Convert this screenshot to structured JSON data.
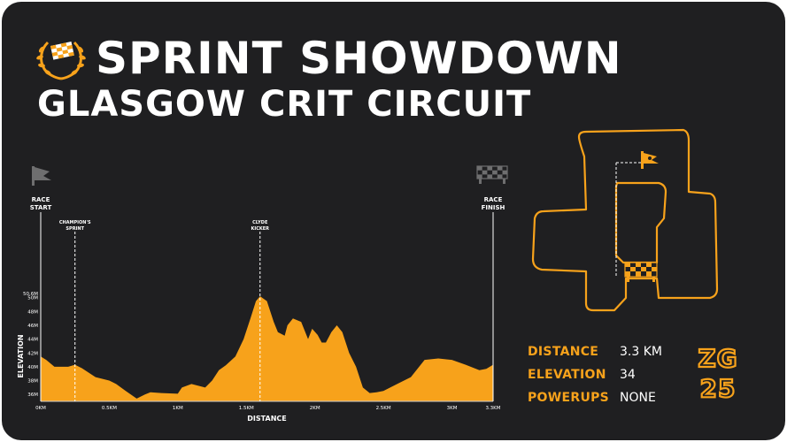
{
  "header": {
    "title": "SPRINT SHOWDOWN",
    "subtitle": "GLASGOW CRIT CIRCUIT",
    "logo_icon": "laurel-checkered-flag-icon"
  },
  "colors": {
    "background": "#1f1f21",
    "accent": "#f7a21b",
    "text": "#ffffff"
  },
  "chart_data": {
    "type": "area",
    "xlabel": "DISTANCE",
    "ylabel": "ELEVATION",
    "xlim": [
      0,
      3.3
    ],
    "ylim": [
      35,
      50.6
    ],
    "x_ticks": [
      {
        "value": 0,
        "label": "0KM"
      },
      {
        "value": 0.5,
        "label": "0.5KM"
      },
      {
        "value": 1,
        "label": "1KM"
      },
      {
        "value": 1.5,
        "label": "1.5KM"
      },
      {
        "value": 2,
        "label": "2KM"
      },
      {
        "value": 2.5,
        "label": "2.5KM"
      },
      {
        "value": 3,
        "label": "3KM"
      },
      {
        "value": 3.3,
        "label": "3.3KM"
      }
    ],
    "y_ticks": [
      {
        "value": 36,
        "label": "36M"
      },
      {
        "value": 38,
        "label": "38M"
      },
      {
        "value": 40,
        "label": "40M"
      },
      {
        "value": 42,
        "label": "42M"
      },
      {
        "value": 44,
        "label": "44M"
      },
      {
        "value": 46,
        "label": "46M"
      },
      {
        "value": 48,
        "label": "48M"
      },
      {
        "value": 50,
        "label": "50M"
      },
      {
        "value": 50.6,
        "label": "50.6M"
      }
    ],
    "x": [
      0,
      0.04,
      0.1,
      0.2,
      0.25,
      0.3,
      0.4,
      0.5,
      0.55,
      0.62,
      0.7,
      0.76,
      0.8,
      0.88,
      1.0,
      1.03,
      1.1,
      1.2,
      1.25,
      1.3,
      1.35,
      1.42,
      1.48,
      1.53,
      1.57,
      1.6,
      1.65,
      1.7,
      1.73,
      1.78,
      1.8,
      1.84,
      1.9,
      1.95,
      1.98,
      2.02,
      2.05,
      2.08,
      2.12,
      2.16,
      2.2,
      2.25,
      2.3,
      2.35,
      2.4,
      2.45,
      2.5,
      2.6,
      2.7,
      2.8,
      2.9,
      3.0,
      3.1,
      3.2,
      3.25,
      3.3
    ],
    "y": [
      41.5,
      41,
      40,
      40,
      40.3,
      39.8,
      38.5,
      38,
      37.5,
      36.5,
      35.4,
      36,
      36.3,
      36.2,
      36.1,
      37,
      37.5,
      37,
      38,
      39.5,
      40.2,
      41.5,
      44,
      47,
      49.5,
      50.2,
      49.5,
      46.5,
      45,
      44.5,
      46,
      47,
      46.5,
      44,
      45.5,
      44.6,
      43.5,
      43.5,
      45,
      46,
      45,
      42,
      40,
      37,
      36.2,
      36.3,
      36.5,
      37.5,
      38.5,
      41,
      41.2,
      41,
      40.3,
      39.5,
      39.7,
      40.3
    ],
    "markers": [
      {
        "x": 0,
        "label": "RACE START",
        "label_lines": [
          "RACE",
          "START"
        ],
        "icon": "race-start-flag-icon"
      },
      {
        "x": 0.25,
        "label": "CHAMPION'S SPRINT",
        "label_lines": [
          "CHAMPION'S",
          "SPRINT"
        ]
      },
      {
        "x": 1.6,
        "label": "CLYDE KICKER",
        "label_lines": [
          "CLYDE",
          "KICKER"
        ]
      },
      {
        "x": 3.3,
        "label": "RACE FINISH",
        "label_lines": [
          "RACE",
          "FINISH"
        ],
        "icon": "checkered-finish-flag-icon"
      }
    ]
  },
  "map": {
    "start_icon": "route-start-flag-icon",
    "finish_icon": "route-finish-checkered-icon"
  },
  "stats": [
    {
      "label": "DISTANCE",
      "value": "3.3 KM"
    },
    {
      "label": "ELEVATION",
      "value": "34"
    },
    {
      "label": "POWERUPS",
      "value": "NONE"
    }
  ],
  "brand": {
    "badge_line1": "ZG",
    "badge_line2": "25"
  }
}
